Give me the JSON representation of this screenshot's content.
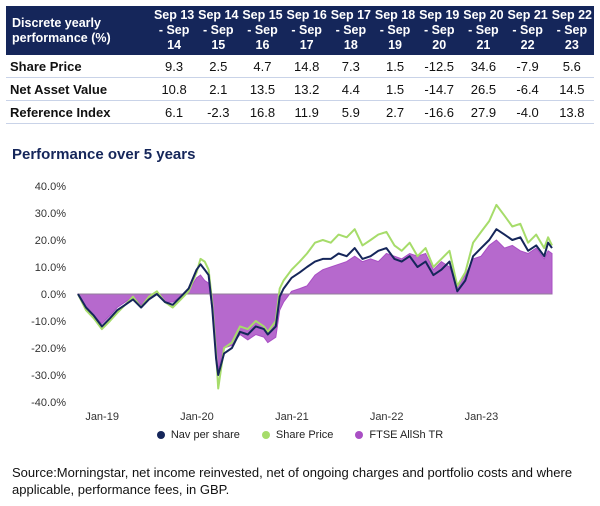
{
  "table": {
    "header_label": "Discrete yearly performance (%)",
    "periods": [
      "Sep 13 - Sep 14",
      "Sep 14 - Sep 15",
      "Sep 15 - Sep 16",
      "Sep 16 - Sep 17",
      "Sep 17 - Sep 18",
      "Sep 18 - Sep 19",
      "Sep 19 - Sep 20",
      "Sep 20 - Sep 21",
      "Sep 21 - Sep 22",
      "Sep 22 - Sep 23"
    ],
    "rows": [
      {
        "label": "Share Price",
        "values": [
          "9.3",
          "2.5",
          "4.7",
          "14.8",
          "7.3",
          "1.5",
          "-12.5",
          "34.6",
          "-7.9",
          "5.6"
        ]
      },
      {
        "label": "Net Asset Value",
        "values": [
          "10.8",
          "2.1",
          "13.5",
          "13.2",
          "4.4",
          "1.5",
          "-14.7",
          "26.5",
          "-6.4",
          "14.5"
        ]
      },
      {
        "label": "Reference Index",
        "values": [
          "6.1",
          "-2.3",
          "16.8",
          "11.9",
          "5.9",
          "2.7",
          "-16.6",
          "27.9",
          "-4.0",
          "13.8"
        ]
      }
    ]
  },
  "chart_data": {
    "type": "line",
    "title": "Performance over 5 years",
    "y_tick_labels": [
      "40.0%",
      "30.0%",
      "20.0%",
      "10.0%",
      "0.0%",
      "-10.0%",
      "-20.0%",
      "-30.0%",
      "-40.0%"
    ],
    "ylim": [
      -40,
      40
    ],
    "xlim": [
      "2018-09-30",
      "2023-09-30"
    ],
    "x_tick_labels": [
      {
        "label": "Jan-19",
        "date": "2019-01-01"
      },
      {
        "label": "Jan-20",
        "date": "2020-01-01"
      },
      {
        "label": "Jan-21",
        "date": "2021-01-01"
      },
      {
        "label": "Jan-22",
        "date": "2022-01-01"
      },
      {
        "label": "Jan-23",
        "date": "2023-01-01"
      }
    ],
    "grid": false,
    "legend_position": "bottom",
    "series": [
      {
        "name": "Nav per share",
        "color": "#15265a",
        "style": "line",
        "points": [
          [
            "2018-09-30",
            0
          ],
          [
            "2018-10-31",
            -5
          ],
          [
            "2018-11-30",
            -8
          ],
          [
            "2018-12-31",
            -12
          ],
          [
            "2019-01-31",
            -9
          ],
          [
            "2019-02-28",
            -6
          ],
          [
            "2019-03-31",
            -4
          ],
          [
            "2019-04-30",
            -2
          ],
          [
            "2019-05-31",
            -5
          ],
          [
            "2019-06-30",
            -2
          ],
          [
            "2019-07-31",
            0
          ],
          [
            "2019-08-31",
            -3
          ],
          [
            "2019-09-30",
            -4
          ],
          [
            "2019-10-31",
            -1
          ],
          [
            "2019-11-30",
            2
          ],
          [
            "2019-12-31",
            9
          ],
          [
            "2020-01-15",
            11
          ],
          [
            "2020-01-31",
            9
          ],
          [
            "2020-02-15",
            7
          ],
          [
            "2020-02-29",
            -5
          ],
          [
            "2020-03-15",
            -24
          ],
          [
            "2020-03-23",
            -30
          ],
          [
            "2020-04-15",
            -22
          ],
          [
            "2020-05-15",
            -20
          ],
          [
            "2020-06-15",
            -14
          ],
          [
            "2020-07-15",
            -15
          ],
          [
            "2020-08-15",
            -12
          ],
          [
            "2020-09-15",
            -13
          ],
          [
            "2020-09-30",
            -15
          ],
          [
            "2020-10-31",
            -12
          ],
          [
            "2020-11-15",
            -1
          ],
          [
            "2020-11-30",
            2
          ],
          [
            "2020-12-31",
            6
          ],
          [
            "2021-01-31",
            8
          ],
          [
            "2021-02-28",
            10
          ],
          [
            "2021-03-31",
            12
          ],
          [
            "2021-04-30",
            13
          ],
          [
            "2021-05-31",
            13
          ],
          [
            "2021-06-30",
            15
          ],
          [
            "2021-07-31",
            14
          ],
          [
            "2021-08-31",
            17
          ],
          [
            "2021-09-30",
            13
          ],
          [
            "2021-10-31",
            14
          ],
          [
            "2021-11-30",
            16
          ],
          [
            "2021-12-31",
            17
          ],
          [
            "2022-01-31",
            13
          ],
          [
            "2022-02-28",
            12
          ],
          [
            "2022-03-31",
            14
          ],
          [
            "2022-04-30",
            10
          ],
          [
            "2022-05-31",
            12
          ],
          [
            "2022-06-30",
            7
          ],
          [
            "2022-07-31",
            9
          ],
          [
            "2022-08-31",
            12
          ],
          [
            "2022-09-30",
            1
          ],
          [
            "2022-10-31",
            5
          ],
          [
            "2022-11-30",
            14
          ],
          [
            "2022-12-31",
            17
          ],
          [
            "2023-01-31",
            20
          ],
          [
            "2023-02-28",
            24
          ],
          [
            "2023-03-31",
            22
          ],
          [
            "2023-04-30",
            20
          ],
          [
            "2023-05-31",
            21
          ],
          [
            "2023-06-30",
            16
          ],
          [
            "2023-07-31",
            18
          ],
          [
            "2023-08-31",
            14
          ],
          [
            "2023-09-15",
            19
          ],
          [
            "2023-09-30",
            17
          ]
        ]
      },
      {
        "name": "Share Price",
        "color": "#a6dc6a",
        "style": "line",
        "points": [
          [
            "2018-09-30",
            0
          ],
          [
            "2018-10-31",
            -6
          ],
          [
            "2018-11-30",
            -9
          ],
          [
            "2018-12-31",
            -13
          ],
          [
            "2019-01-31",
            -10
          ],
          [
            "2019-02-28",
            -7
          ],
          [
            "2019-03-31",
            -4
          ],
          [
            "2019-04-30",
            -1
          ],
          [
            "2019-05-31",
            -5
          ],
          [
            "2019-06-30",
            -1
          ],
          [
            "2019-07-31",
            1
          ],
          [
            "2019-08-31",
            -3
          ],
          [
            "2019-09-30",
            -5
          ],
          [
            "2019-10-31",
            -2
          ],
          [
            "2019-11-30",
            1
          ],
          [
            "2019-12-31",
            8
          ],
          [
            "2020-01-15",
            13
          ],
          [
            "2020-01-31",
            12
          ],
          [
            "2020-02-15",
            9
          ],
          [
            "2020-02-29",
            -3
          ],
          [
            "2020-03-15",
            -22
          ],
          [
            "2020-03-23",
            -35
          ],
          [
            "2020-04-15",
            -20
          ],
          [
            "2020-05-15",
            -18
          ],
          [
            "2020-06-15",
            -12
          ],
          [
            "2020-07-15",
            -13
          ],
          [
            "2020-08-15",
            -10
          ],
          [
            "2020-09-15",
            -12
          ],
          [
            "2020-09-30",
            -14
          ],
          [
            "2020-10-31",
            -10
          ],
          [
            "2020-11-15",
            2
          ],
          [
            "2020-11-30",
            5
          ],
          [
            "2020-12-31",
            9
          ],
          [
            "2021-01-31",
            12
          ],
          [
            "2021-02-28",
            15
          ],
          [
            "2021-03-31",
            19
          ],
          [
            "2021-04-30",
            20
          ],
          [
            "2021-05-31",
            19
          ],
          [
            "2021-06-30",
            22
          ],
          [
            "2021-07-31",
            21
          ],
          [
            "2021-08-31",
            24
          ],
          [
            "2021-09-30",
            18
          ],
          [
            "2021-10-31",
            20
          ],
          [
            "2021-11-30",
            22
          ],
          [
            "2021-12-31",
            23
          ],
          [
            "2022-01-31",
            18
          ],
          [
            "2022-02-28",
            16
          ],
          [
            "2022-03-31",
            19
          ],
          [
            "2022-04-30",
            14
          ],
          [
            "2022-05-31",
            17
          ],
          [
            "2022-06-30",
            10
          ],
          [
            "2022-07-31",
            13
          ],
          [
            "2022-08-31",
            16
          ],
          [
            "2022-09-30",
            3
          ],
          [
            "2022-10-31",
            8
          ],
          [
            "2022-11-30",
            19
          ],
          [
            "2022-12-31",
            23
          ],
          [
            "2023-01-31",
            27
          ],
          [
            "2023-02-28",
            33
          ],
          [
            "2023-03-31",
            29
          ],
          [
            "2023-04-30",
            25
          ],
          [
            "2023-05-31",
            26
          ],
          [
            "2023-06-30",
            19
          ],
          [
            "2023-07-31",
            22
          ],
          [
            "2023-08-31",
            17
          ],
          [
            "2023-09-15",
            21
          ],
          [
            "2023-09-30",
            18
          ]
        ]
      },
      {
        "name": "FTSE AllSh TR",
        "color": "#a94fc4",
        "style": "area",
        "points": [
          [
            "2018-09-30",
            0
          ],
          [
            "2018-10-31",
            -6
          ],
          [
            "2018-11-30",
            -8
          ],
          [
            "2018-12-31",
            -11
          ],
          [
            "2019-01-31",
            -8
          ],
          [
            "2019-02-28",
            -5
          ],
          [
            "2019-03-31",
            -3
          ],
          [
            "2019-04-30",
            -1
          ],
          [
            "2019-05-31",
            -4
          ],
          [
            "2019-06-30",
            -2
          ],
          [
            "2019-07-31",
            0
          ],
          [
            "2019-08-31",
            -3
          ],
          [
            "2019-09-30",
            -3
          ],
          [
            "2019-10-31",
            -1
          ],
          [
            "2019-11-30",
            1
          ],
          [
            "2019-12-31",
            6
          ],
          [
            "2020-01-15",
            7
          ],
          [
            "2020-01-31",
            5
          ],
          [
            "2020-02-15",
            4
          ],
          [
            "2020-02-29",
            -6
          ],
          [
            "2020-03-15",
            -22
          ],
          [
            "2020-03-23",
            -28
          ],
          [
            "2020-04-15",
            -20
          ],
          [
            "2020-05-15",
            -19
          ],
          [
            "2020-06-15",
            -15
          ],
          [
            "2020-07-15",
            -17
          ],
          [
            "2020-08-15",
            -15
          ],
          [
            "2020-09-15",
            -16
          ],
          [
            "2020-09-30",
            -18
          ],
          [
            "2020-10-31",
            -16
          ],
          [
            "2020-11-15",
            -6
          ],
          [
            "2020-11-30",
            -3
          ],
          [
            "2020-12-31",
            1
          ],
          [
            "2021-01-31",
            2
          ],
          [
            "2021-02-28",
            3
          ],
          [
            "2021-03-31",
            7
          ],
          [
            "2021-04-30",
            9
          ],
          [
            "2021-05-31",
            10
          ],
          [
            "2021-06-30",
            11
          ],
          [
            "2021-07-31",
            12
          ],
          [
            "2021-08-31",
            14
          ],
          [
            "2021-09-30",
            12
          ],
          [
            "2021-10-31",
            13
          ],
          [
            "2021-11-30",
            12
          ],
          [
            "2021-12-31",
            15
          ],
          [
            "2022-01-31",
            14
          ],
          [
            "2022-02-28",
            13
          ],
          [
            "2022-03-31",
            15
          ],
          [
            "2022-04-30",
            14
          ],
          [
            "2022-05-31",
            15
          ],
          [
            "2022-06-30",
            9
          ],
          [
            "2022-07-31",
            12
          ],
          [
            "2022-08-31",
            10
          ],
          [
            "2022-09-30",
            3
          ],
          [
            "2022-10-31",
            7
          ],
          [
            "2022-11-30",
            13
          ],
          [
            "2022-12-31",
            14
          ],
          [
            "2023-01-31",
            18
          ],
          [
            "2023-02-28",
            20
          ],
          [
            "2023-03-31",
            17
          ],
          [
            "2023-04-30",
            18
          ],
          [
            "2023-05-31",
            16
          ],
          [
            "2023-06-30",
            15
          ],
          [
            "2023-07-31",
            17
          ],
          [
            "2023-08-31",
            13
          ],
          [
            "2023-09-15",
            16
          ],
          [
            "2023-09-30",
            15
          ]
        ]
      }
    ]
  },
  "source_note": "Source:Morningstar, net income reinvested, net of ongoing charges and portfolio costs and where applicable, performance fees, in GBP."
}
